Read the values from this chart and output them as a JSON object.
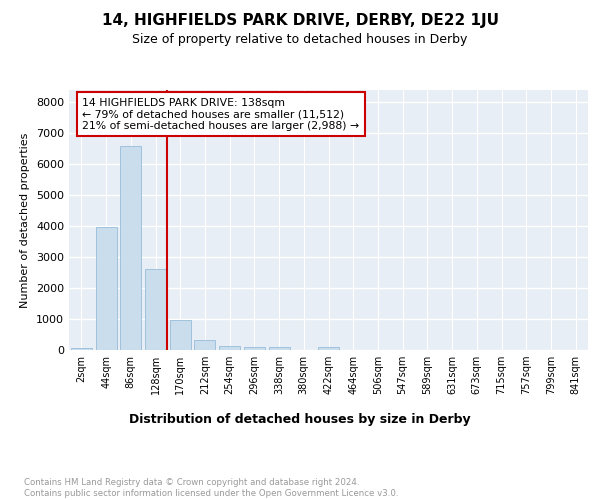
{
  "title": "14, HIGHFIELDS PARK DRIVE, DERBY, DE22 1JU",
  "subtitle": "Size of property relative to detached houses in Derby",
  "xlabel": "Distribution of detached houses by size in Derby",
  "ylabel": "Number of detached properties",
  "bar_color": "#c9dded",
  "bar_edge_color": "#8ab4d4",
  "background_color": "#e8eef5",
  "grid_color": "#ffffff",
  "annotation_box_color": "#cc0000",
  "vline_color": "#cc0000",
  "annotation_lines": [
    "14 HIGHFIELDS PARK DRIVE: 138sqm",
    "← 79% of detached houses are smaller (11,512)",
    "21% of semi-detached houses are larger (2,988) →"
  ],
  "categories": [
    "2sqm",
    "44sqm",
    "86sqm",
    "128sqm",
    "170sqm",
    "212sqm",
    "254sqm",
    "296sqm",
    "338sqm",
    "380sqm",
    "422sqm",
    "464sqm",
    "506sqm",
    "547sqm",
    "589sqm",
    "631sqm",
    "673sqm",
    "715sqm",
    "757sqm",
    "799sqm",
    "841sqm"
  ],
  "values": [
    75,
    3975,
    6600,
    2620,
    960,
    310,
    125,
    110,
    100,
    0,
    100,
    0,
    0,
    0,
    0,
    0,
    0,
    0,
    0,
    0,
    0
  ],
  "ylim": [
    0,
    8400
  ],
  "yticks": [
    0,
    1000,
    2000,
    3000,
    4000,
    5000,
    6000,
    7000,
    8000
  ],
  "footer_text": "Contains HM Land Registry data © Crown copyright and database right 2024.\nContains public sector information licensed under the Open Government Licence v3.0.",
  "footer_color": "#999999",
  "title_fontsize": 11,
  "subtitle_fontsize": 9,
  "ylabel_fontsize": 8,
  "xlabel_fontsize": 9,
  "tick_fontsize": 7,
  "ytick_fontsize": 8
}
